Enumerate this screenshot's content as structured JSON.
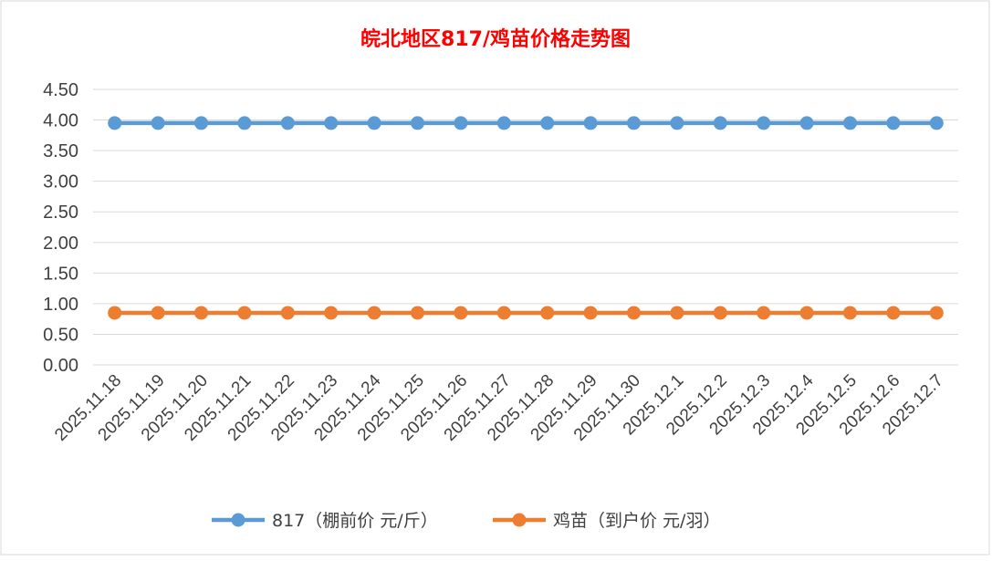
{
  "chart_data": {
    "type": "line",
    "title": "皖北地区817/鸡苗价格走势图",
    "title_color": "#ff0000",
    "xlabel": "",
    "ylabel": "",
    "categories": [
      "2025.11.18",
      "2025.11.19",
      "2025.11.20",
      "2025.11.21",
      "2025.11.22",
      "2025.11.23",
      "2025.11.24",
      "2025.11.25",
      "2025.11.26",
      "2025.11.27",
      "2025.11.28",
      "2025.11.29",
      "2025.11.30",
      "2025.12.1",
      "2025.12.2",
      "2025.12.3",
      "2025.12.4",
      "2025.12.5",
      "2025.12.6",
      "2025.12.7"
    ],
    "y_ticks": [
      "0.00",
      "0.50",
      "1.00",
      "1.50",
      "2.00",
      "2.50",
      "3.00",
      "3.50",
      "4.00",
      "4.50"
    ],
    "ylim": [
      0,
      4.5
    ],
    "grid": true,
    "legend_position": "bottom",
    "series": [
      {
        "name": "817（棚前价 元/斤）",
        "color": "#5b9bd5",
        "values": [
          3.95,
          3.95,
          3.95,
          3.95,
          3.95,
          3.95,
          3.95,
          3.95,
          3.95,
          3.95,
          3.95,
          3.95,
          3.95,
          3.95,
          3.95,
          3.95,
          3.95,
          3.95,
          3.95,
          3.95
        ]
      },
      {
        "name": "鸡苗（到户价 元/羽）",
        "color": "#ed7d31",
        "values": [
          0.85,
          0.85,
          0.85,
          0.85,
          0.85,
          0.85,
          0.85,
          0.85,
          0.85,
          0.85,
          0.85,
          0.85,
          0.85,
          0.85,
          0.85,
          0.85,
          0.85,
          0.85,
          0.85,
          0.85
        ]
      }
    ]
  }
}
